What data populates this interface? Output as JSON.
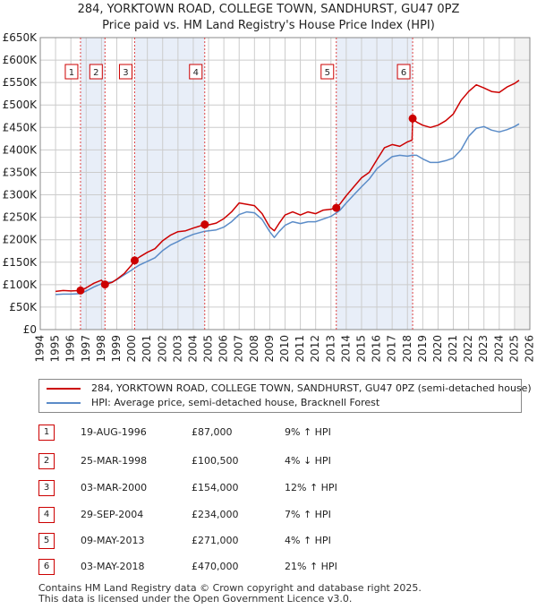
{
  "title_line1": "284, YORKTOWN ROAD, COLLEGE TOWN, SANDHURST, GU47 0PZ",
  "title_line2": "Price paid vs. HM Land Registry's House Price Index (HPI)",
  "colors": {
    "property": "#cc0000",
    "hpi": "#5b8cc8",
    "shade": "#e8eef8",
    "grid": "#cccccc",
    "marker_dash": "#dd4444"
  },
  "legend": {
    "property_label": "284, YORKTOWN ROAD, COLLEGE TOWN, SANDHURST, GU47 0PZ (semi-detached house)",
    "hpi_label": "HPI: Average price, semi-detached house, Bracknell Forest"
  },
  "transactions": [
    {
      "num": "1",
      "date": "19-AUG-1996",
      "price": "£87,000",
      "hpi_change": "9% ↑ HPI"
    },
    {
      "num": "2",
      "date": "25-MAR-1998",
      "price": "£100,500",
      "hpi_change": "4% ↓ HPI"
    },
    {
      "num": "3",
      "date": "03-MAR-2000",
      "price": "£154,000",
      "hpi_change": "12% ↑ HPI"
    },
    {
      "num": "4",
      "date": "29-SEP-2004",
      "price": "£234,000",
      "hpi_change": "7% ↑ HPI"
    },
    {
      "num": "5",
      "date": "09-MAY-2013",
      "price": "£271,000",
      "hpi_change": "4% ↑ HPI"
    },
    {
      "num": "6",
      "date": "03-MAY-2018",
      "price": "£470,000",
      "hpi_change": "21% ↑ HPI"
    }
  ],
  "footer_line1": "Contains HM Land Registry data © Crown copyright and database right 2025.",
  "footer_line2": "This data is licensed under the Open Government Licence v3.0.",
  "chart_data": {
    "type": "line",
    "title": "284, YORKTOWN ROAD, COLLEGE TOWN, SANDHURST, GU47 0PZ",
    "subtitle": "Price paid vs. HM Land Registry's House Price Index (HPI)",
    "xlabel": "",
    "ylabel": "",
    "xlim": [
      1994,
      2026
    ],
    "ylim": [
      0,
      650000
    ],
    "x_ticks": [
      1994,
      1995,
      1996,
      1997,
      1998,
      1999,
      2000,
      2001,
      2002,
      2003,
      2004,
      2005,
      2006,
      2007,
      2008,
      2009,
      2010,
      2011,
      2012,
      2013,
      2014,
      2015,
      2016,
      2017,
      2018,
      2019,
      2020,
      2021,
      2022,
      2023,
      2024,
      2025,
      2026
    ],
    "y_ticks": [
      0,
      50000,
      100000,
      150000,
      200000,
      250000,
      300000,
      350000,
      400000,
      450000,
      500000,
      550000,
      600000,
      650000
    ],
    "y_tick_labels": [
      "£0",
      "£50K",
      "£100K",
      "£150K",
      "£200K",
      "£250K",
      "£300K",
      "£350K",
      "£400K",
      "£450K",
      "£500K",
      "£550K",
      "£600K",
      "£650K"
    ],
    "grid": true,
    "sales": [
      {
        "label": "1",
        "x": 1996.63,
        "y": 87000
      },
      {
        "label": "2",
        "x": 1998.23,
        "y": 100500
      },
      {
        "label": "3",
        "x": 2000.17,
        "y": 154000
      },
      {
        "label": "4",
        "x": 2004.75,
        "y": 234000
      },
      {
        "label": "5",
        "x": 2013.35,
        "y": 271000
      },
      {
        "label": "6",
        "x": 2018.34,
        "y": 470000
      }
    ],
    "series": [
      {
        "name": "284, YORKTOWN ROAD, COLLEGE TOWN, SANDHURST, GU47 0PZ (semi-detached house)",
        "x": [
          1995.0,
          1995.5,
          1996.0,
          1996.63,
          1997.0,
          1997.5,
          1998.0,
          1998.23,
          1998.7,
          1999.0,
          1999.5,
          2000.0,
          2000.17,
          2000.5,
          2001.0,
          2001.5,
          2002.0,
          2002.5,
          2003.0,
          2003.5,
          2004.0,
          2004.75,
          2005.0,
          2005.5,
          2006.0,
          2006.5,
          2007.0,
          2007.5,
          2008.0,
          2008.5,
          2009.0,
          2009.3,
          2009.6,
          2010.0,
          2010.5,
          2011.0,
          2011.5,
          2012.0,
          2012.5,
          2013.0,
          2013.35,
          2013.6,
          2014.0,
          2014.5,
          2015.0,
          2015.5,
          2016.0,
          2016.5,
          2017.0,
          2017.5,
          2018.0,
          2018.3,
          2018.34,
          2018.6,
          2019.0,
          2019.5,
          2020.0,
          2020.5,
          2021.0,
          2021.5,
          2022.0,
          2022.5,
          2023.0,
          2023.5,
          2024.0,
          2024.5,
          2025.0,
          2025.3
        ],
        "values": [
          85000,
          87000,
          86000,
          87000,
          93000,
          103000,
          110000,
          100500,
          105000,
          112000,
          125000,
          145000,
          154000,
          162000,
          172000,
          180000,
          198000,
          210000,
          218000,
          220000,
          226000,
          234000,
          233000,
          237000,
          247000,
          262000,
          282000,
          279000,
          276000,
          258000,
          228000,
          220000,
          236000,
          255000,
          262000,
          255000,
          262000,
          258000,
          266000,
          268000,
          271000,
          280000,
          298000,
          318000,
          338000,
          350000,
          378000,
          405000,
          412000,
          408000,
          418000,
          422000,
          470000,
          462000,
          455000,
          450000,
          455000,
          465000,
          480000,
          510000,
          530000,
          545000,
          538000,
          530000,
          528000,
          540000,
          548000,
          555000
        ]
      },
      {
        "name": "HPI: Average price, semi-detached house, Bracknell Forest",
        "x": [
          1995.0,
          1995.5,
          1996.0,
          1996.63,
          1997.0,
          1997.5,
          1998.0,
          1998.23,
          1998.7,
          1999.0,
          1999.5,
          2000.0,
          2000.17,
          2000.5,
          2001.0,
          2001.5,
          2002.0,
          2002.5,
          2003.0,
          2003.5,
          2004.0,
          2004.75,
          2005.0,
          2005.5,
          2006.0,
          2006.5,
          2007.0,
          2007.5,
          2008.0,
          2008.5,
          2009.0,
          2009.3,
          2009.6,
          2010.0,
          2010.5,
          2011.0,
          2011.5,
          2012.0,
          2012.5,
          2013.0,
          2013.35,
          2013.6,
          2014.0,
          2014.5,
          2015.0,
          2015.5,
          2016.0,
          2016.5,
          2017.0,
          2017.5,
          2018.0,
          2018.3,
          2018.34,
          2018.6,
          2019.0,
          2019.5,
          2020.0,
          2020.5,
          2021.0,
          2021.5,
          2022.0,
          2022.5,
          2023.0,
          2023.5,
          2024.0,
          2024.5,
          2025.0,
          2025.3
        ],
        "values": [
          78000,
          79000,
          79000,
          80000,
          86000,
          95000,
          102000,
          104000,
          106000,
          111000,
          122000,
          133000,
          137000,
          144000,
          152000,
          160000,
          176000,
          188000,
          196000,
          205000,
          212000,
          219000,
          220000,
          222000,
          228000,
          240000,
          256000,
          262000,
          260000,
          245000,
          218000,
          205000,
          218000,
          232000,
          240000,
          236000,
          240000,
          240000,
          246000,
          252000,
          260000,
          266000,
          282000,
          300000,
          318000,
          335000,
          358000,
          372000,
          385000,
          388000,
          386000,
          388000,
          388000,
          388000,
          380000,
          372000,
          372000,
          376000,
          382000,
          400000,
          430000,
          448000,
          452000,
          444000,
          440000,
          445000,
          452000,
          458000
        ]
      }
    ]
  }
}
